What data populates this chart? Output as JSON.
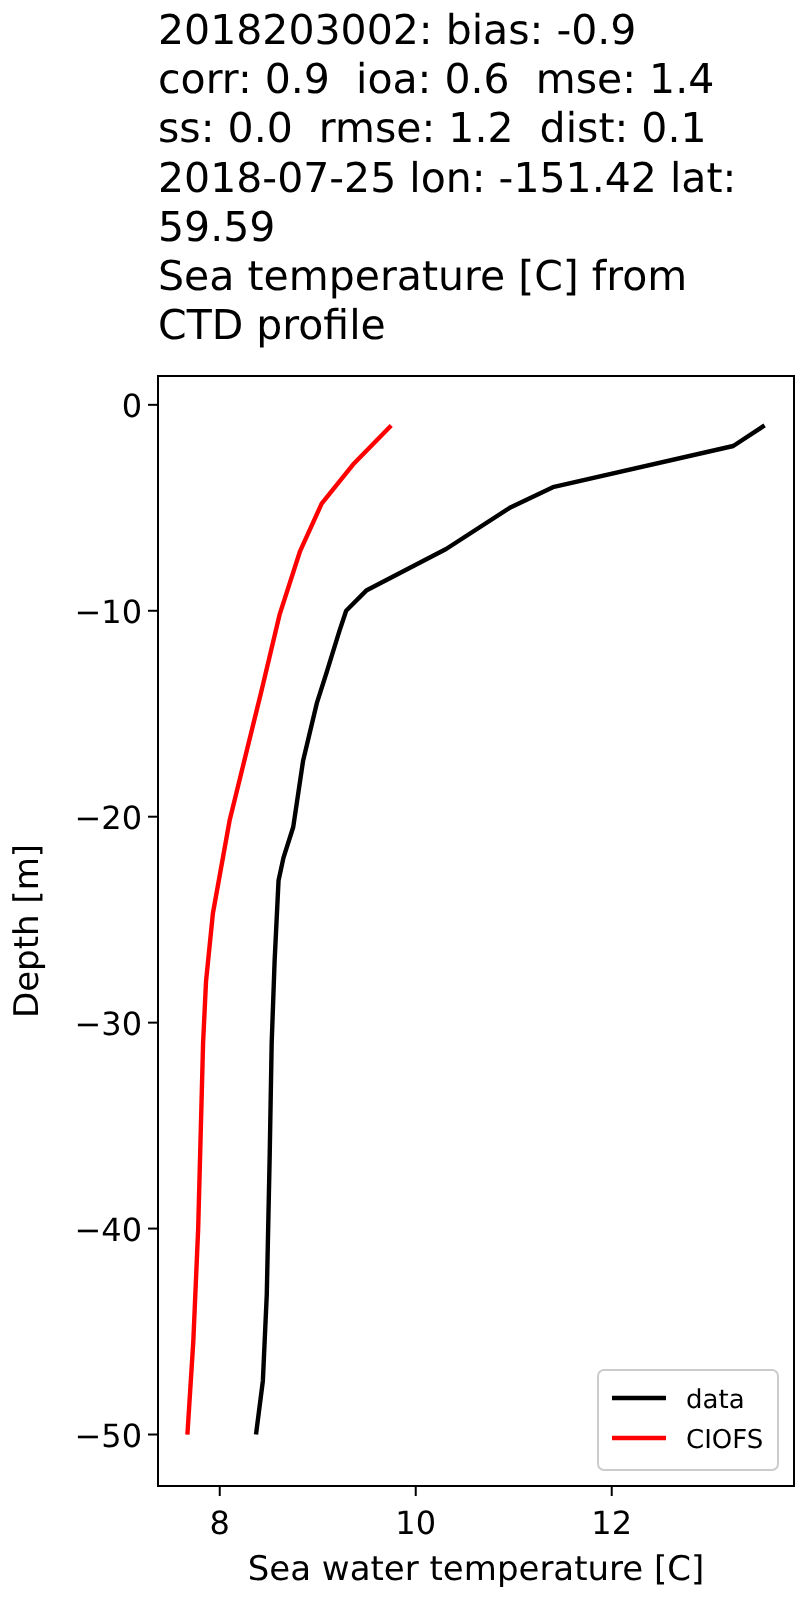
{
  "chart_data": {
    "type": "line",
    "title": "2018203002: bias: -0.9\ncorr: 0.9  ioa: 0.6  mse: 1.4\nss: 0.0  rmse: 1.2  dist: 0.1\n2018-07-25 lon: -151.42 lat:\n59.59\nSea temperature [C] from\nCTD profile",
    "xlabel": "Sea water temperature [C]",
    "ylabel": "Depth [m]",
    "xlim": [
      7.37,
      13.86
    ],
    "xticks": [
      8,
      10,
      12
    ],
    "ylim": [
      -52.5,
      1.4
    ],
    "yticks": [
      0,
      {
        "value": -10,
        "label": "−10"
      },
      {
        "value": -20,
        "label": "−20"
      },
      {
        "value": -30,
        "label": "−30"
      },
      {
        "value": -40,
        "label": "−40"
      },
      {
        "value": -50,
        "label": "−50"
      }
    ],
    "legend": "bottom right",
    "grid": false,
    "line_style": "solid",
    "marker": "none",
    "series": [
      {
        "name": "data",
        "color": "#000000",
        "x": [
          13.56,
          13.24,
          11.4,
          10.96,
          10.31,
          9.5,
          9.29,
          9.22,
          9.09,
          8.99,
          8.85,
          8.75,
          8.65,
          8.6,
          8.56,
          8.53,
          8.51,
          8.48,
          8.44,
          8.37
        ],
        "values": [
          -1,
          -2,
          -4,
          -5,
          -7,
          -9,
          -10,
          -11,
          -13,
          -14.5,
          -17.3,
          -20.5,
          -22,
          -23.1,
          -27,
          -31,
          -36.4,
          -43.2,
          -47.4,
          -50
        ]
      },
      {
        "name": "CIOFS",
        "color": "#ff0000",
        "x": [
          9.75,
          9.36,
          9.04,
          8.82,
          8.61,
          8.42,
          8.1,
          7.93,
          7.86,
          7.83,
          7.78,
          7.73,
          7.67
        ],
        "values": [
          -1,
          -2.9,
          -4.8,
          -7.1,
          -10.2,
          -14,
          -20.2,
          -24.7,
          -28,
          -31,
          -40,
          -45.5,
          -50
        ]
      }
    ]
  }
}
